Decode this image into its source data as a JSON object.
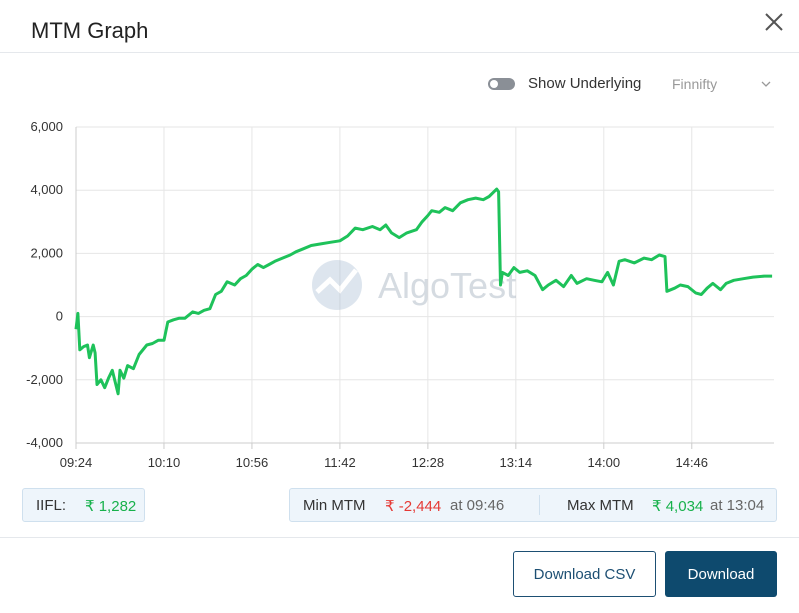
{
  "dialog": {
    "title": "MTM Graph",
    "show_underlying": "Show Underlying",
    "underlying_select": "Finnifty",
    "broker": {
      "label": "IIFL:",
      "value": "₹ 1,282"
    },
    "min_mtm": {
      "label": "Min MTM",
      "value": "₹ -2,444",
      "time": "at 09:46"
    },
    "max_mtm": {
      "label": "Max MTM",
      "value": "₹ 4,034",
      "time": "at 13:04"
    },
    "buttons": {
      "download_csv": "Download CSV",
      "download": "Download"
    }
  },
  "chart_data": {
    "type": "line",
    "watermark": "AlgoTest",
    "x": [
      "09:24",
      "09:25",
      "09:26",
      "09:28",
      "09:30",
      "09:31",
      "09:33",
      "09:34",
      "09:35",
      "09:37",
      "09:39",
      "09:41",
      "09:43",
      "09:46",
      "09:47",
      "09:49",
      "09:51",
      "09:54",
      "09:57",
      "10:01",
      "10:04",
      "10:07",
      "10:10",
      "10:12",
      "10:15",
      "10:18",
      "10:21",
      "10:25",
      "10:28",
      "10:31",
      "10:34",
      "10:37",
      "10:40",
      "10:43",
      "10:47",
      "10:50",
      "10:53",
      "10:56",
      "10:59",
      "11:02",
      "11:05",
      "11:08",
      "11:12",
      "11:16",
      "11:19",
      "11:23",
      "11:27",
      "11:32",
      "11:37",
      "11:42",
      "11:46",
      "11:50",
      "11:54",
      "11:59",
      "12:03",
      "12:06",
      "12:09",
      "12:13",
      "12:17",
      "12:22",
      "12:25",
      "12:28",
      "12:30",
      "12:34",
      "12:37",
      "12:41",
      "12:45",
      "12:49",
      "12:53",
      "12:57",
      "13:00",
      "13:04",
      "13:05",
      "13:06",
      "13:07",
      "13:10",
      "13:13",
      "13:16",
      "13:20",
      "13:24",
      "13:28",
      "13:31",
      "13:35",
      "13:39",
      "13:43",
      "13:46",
      "13:51",
      "13:55",
      "13:59",
      "14:02",
      "14:05",
      "14:08",
      "14:11",
      "14:16",
      "14:21",
      "14:25",
      "14:29",
      "14:32",
      "14:33",
      "14:37",
      "14:40",
      "14:44",
      "14:48",
      "14:51",
      "14:54",
      "14:57",
      "15:01",
      "15:04",
      "15:08",
      "15:13",
      "15:18",
      "15:24",
      "15:28"
    ],
    "series": [
      {
        "color": "#1ec25a",
        "values": [
          -400,
          100,
          -1050,
          -950,
          -900,
          -1300,
          -900,
          -1150,
          -2150,
          -2000,
          -2250,
          -1950,
          -1700,
          -2444,
          -1700,
          -1950,
          -1550,
          -1650,
          -1200,
          -900,
          -850,
          -750,
          -750,
          -170,
          -100,
          -50,
          -50,
          150,
          100,
          200,
          250,
          700,
          800,
          1100,
          1000,
          1200,
          1300,
          1500,
          1650,
          1550,
          1650,
          1750,
          1850,
          1950,
          2050,
          2150,
          2250,
          2300,
          2350,
          2400,
          2550,
          2800,
          2750,
          2850,
          2750,
          2900,
          2650,
          2500,
          2650,
          2750,
          3000,
          3200,
          3350,
          3300,
          3450,
          3350,
          3600,
          3700,
          3750,
          3700,
          3800,
          4034,
          3950,
          1000,
          1400,
          1300,
          1550,
          1400,
          1450,
          1300,
          850,
          1000,
          1150,
          950,
          1300,
          1050,
          1200,
          1150,
          1100,
          1400,
          1000,
          1750,
          1800,
          1700,
          1850,
          1800,
          1950,
          1900,
          800,
          900,
          1000,
          950,
          750,
          700,
          900,
          1050,
          850,
          1050,
          1150,
          1200,
          1250,
          1282,
          1282
        ]
      }
    ],
    "xlim": [
      "09:24",
      "15:29"
    ],
    "xticks": [
      "09:24",
      "10:10",
      "10:56",
      "11:42",
      "12:28",
      "13:14",
      "14:00",
      "14:46"
    ],
    "ylim": [
      -4000,
      6000
    ],
    "yticks": [
      {
        "value": -4000,
        "label": "-4,000"
      },
      {
        "value": -2000,
        "label": "-2,000"
      },
      0,
      {
        "value": 2000,
        "label": "2,000"
      },
      {
        "value": 4000,
        "label": "4,000"
      },
      {
        "value": 6000,
        "label": "6,000"
      }
    ],
    "grid": true
  }
}
